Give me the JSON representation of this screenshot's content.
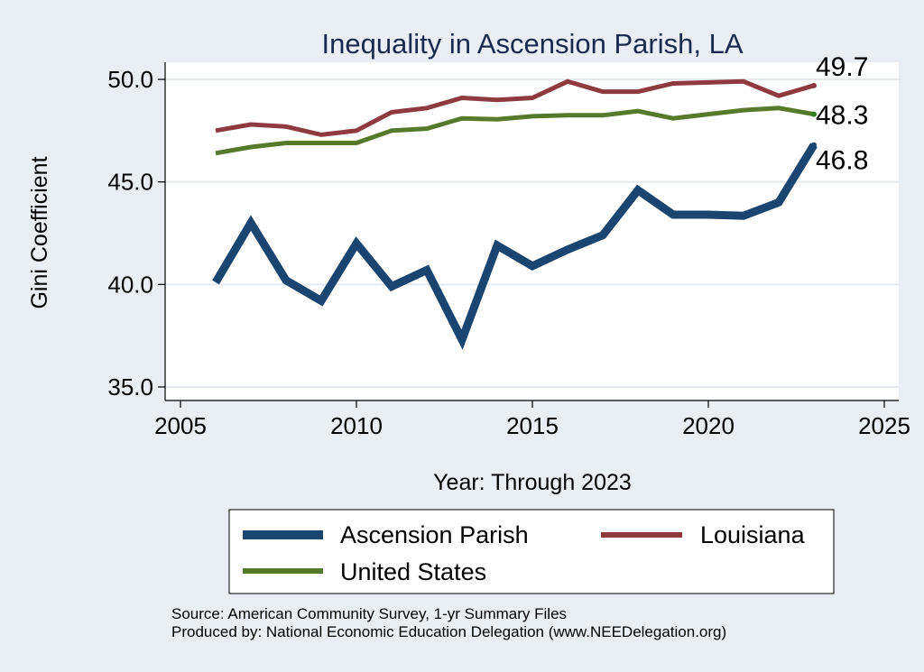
{
  "chart_data": {
    "type": "line",
    "title": "Inequality in Ascension Parish, LA",
    "xlabel": "Year: Through 2023",
    "ylabel": "Gini Coefficient",
    "xlim": [
      2005,
      2025
    ],
    "ylim": [
      35,
      50
    ],
    "xticks": [
      2005,
      2010,
      2015,
      2020,
      2025
    ],
    "yticks": [
      35,
      40,
      45,
      50
    ],
    "xtick_labels": [
      "2005",
      "2010",
      "2015",
      "2020",
      "2025"
    ],
    "ytick_labels": [
      "35.0",
      "40.0",
      "45.0",
      "50.0"
    ],
    "x": [
      2006,
      2007,
      2008,
      2009,
      2010,
      2011,
      2012,
      2013,
      2014,
      2015,
      2016,
      2017,
      2018,
      2019,
      2020,
      2021,
      2022,
      2023
    ],
    "series": [
      {
        "name": "Ascension Parish",
        "color": "#1a4570",
        "values": [
          40.1,
          43.0,
          40.2,
          39.2,
          42.0,
          39.9,
          40.7,
          37.3,
          41.9,
          40.9,
          41.7,
          42.4,
          44.6,
          43.4,
          43.4,
          43.35,
          44.0,
          46.8
        ],
        "end_label": "46.8"
      },
      {
        "name": "Louisiana",
        "color": "#8e3a3f",
        "values": [
          47.5,
          47.8,
          47.7,
          47.3,
          47.5,
          48.4,
          48.6,
          49.1,
          49.0,
          49.1,
          49.9,
          49.4,
          49.4,
          49.8,
          49.85,
          49.9,
          49.2,
          49.7
        ],
        "end_label": "49.7"
      },
      {
        "name": "United States",
        "color": "#567a2c",
        "values": [
          46.4,
          46.7,
          46.9,
          46.9,
          46.9,
          47.5,
          47.6,
          48.1,
          48.05,
          48.2,
          48.25,
          48.25,
          48.45,
          48.1,
          48.3,
          48.5,
          48.6,
          48.3
        ],
        "end_label": "48.3"
      }
    ],
    "legend": {
      "position": "bottom",
      "entries": [
        "Ascension Parish",
        "Louisiana",
        "United States"
      ]
    },
    "grid": true
  },
  "footer": {
    "source": "Source: American Community Survey, 1-yr Summary Files",
    "produced_by": "Produced by: National Economic Education Delegation (www.NEEDelegation.org)"
  },
  "colors": {
    "background": "#e8eef3",
    "plot_background": "#ffffff",
    "grid": "#e3eaf0",
    "title": "#1a2a4f"
  }
}
